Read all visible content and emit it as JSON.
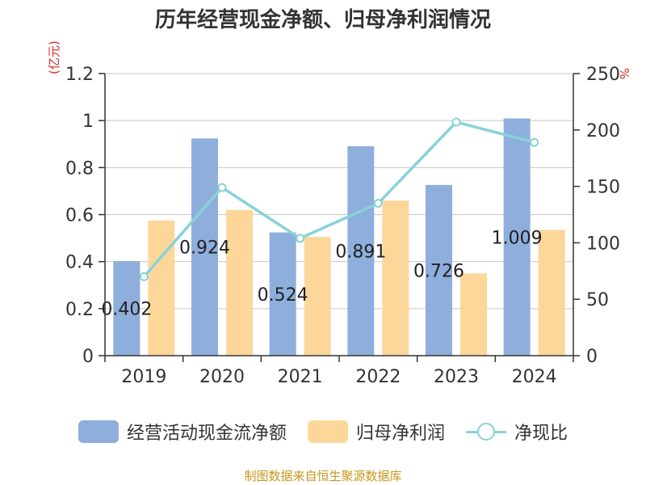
{
  "title": "历年经营现金净额、归母净利润情况",
  "source": "制图数据来自恒生聚源数据库",
  "chart_data": {
    "type": "bar",
    "categories": [
      "2019",
      "2020",
      "2021",
      "2022",
      "2023",
      "2024"
    ],
    "y_left": {
      "unit": "(亿元)",
      "ylim": [
        0,
        1.2
      ],
      "ticks": [
        "0",
        "0.2",
        "0.4",
        "0.6",
        "0.8",
        "1",
        "1.2"
      ]
    },
    "y_right": {
      "unit": "%",
      "ylim": [
        0,
        250
      ],
      "ticks": [
        "0",
        "50",
        "100",
        "150",
        "200",
        "250"
      ]
    },
    "grid": true,
    "legend_position": "bottom",
    "series": [
      {
        "name": "经营活动现金流净额",
        "kind": "bar",
        "axis": "left",
        "color": "#8eaedc",
        "values": [
          0.402,
          0.924,
          0.524,
          0.891,
          0.726,
          1.009
        ],
        "labels": [
          "0.402",
          "0.924",
          "0.524",
          "0.891",
          "0.726",
          "1.009"
        ]
      },
      {
        "name": "归母净利润",
        "kind": "bar",
        "axis": "left",
        "color": "#fdd79a",
        "values": [
          0.575,
          0.62,
          0.505,
          0.66,
          0.35,
          0.535
        ]
      },
      {
        "name": "净现比",
        "kind": "line",
        "axis": "right",
        "color": "#88d2d8",
        "values": [
          70,
          149,
          104,
          135,
          207,
          189
        ]
      }
    ]
  }
}
